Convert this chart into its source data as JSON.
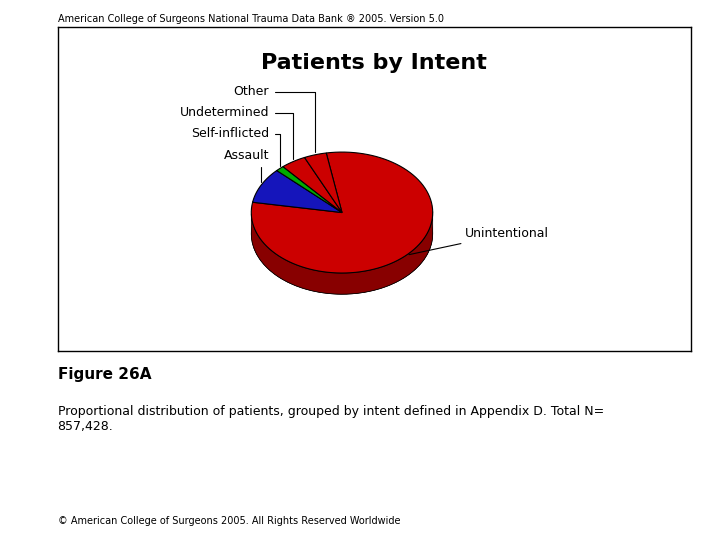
{
  "title": "Patients by Intent",
  "header": "American College of Surgeons National Trauma Data Bank ® 2005. Version 5.0",
  "figure_label": "Figure 26A",
  "caption": "Proportional distribution of patients, grouped by intent defined in Appendix D. Total N=\n857,428.",
  "footer": "© American College of Surgeons 2005. All Rights Reserved Worldwide",
  "slices": [
    "Unintentional",
    "Assault",
    "Self-inflicted",
    "Undetermined",
    "Other"
  ],
  "values": [
    80.5,
    9.5,
    1.5,
    4.5,
    4.0
  ],
  "pie_colors": [
    "#CC0000",
    "#1515BB",
    "#00AA00",
    "#CC0000",
    "#CC0000"
  ],
  "pie_side_colors": [
    "#880000",
    "#0D0D77",
    "#007700",
    "#880000",
    "#880000"
  ],
  "background_color": "#ffffff",
  "title_fontsize": 16,
  "label_fontsize": 9,
  "header_fontsize": 7,
  "figure_label_fontsize": 11,
  "caption_fontsize": 9,
  "footer_fontsize": 7
}
